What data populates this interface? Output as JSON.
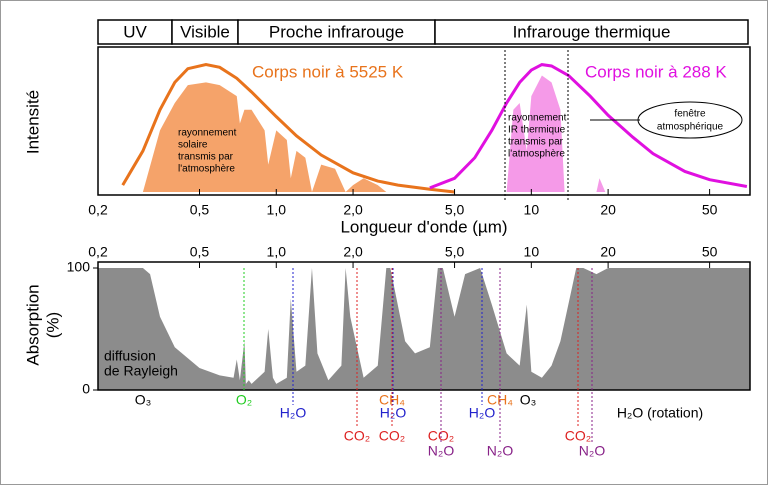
{
  "chart_data": [
    {
      "type": "line",
      "bands": [
        "UV",
        "Visible",
        "Proche infrarouge",
        "Infrarouge thermique"
      ],
      "x_label": "Longueur d'onde (µm)",
      "y_label": "Intensité",
      "xscale": "log",
      "xlim": [
        0.2,
        72
      ],
      "ylim": [
        0,
        1
      ],
      "xticks": [
        {
          "value": 0.2,
          "label": "0,2"
        },
        {
          "value": 0.5,
          "label": "0,5"
        },
        {
          "value": 1,
          "label": "1,0"
        },
        {
          "value": 2,
          "label": "2,0"
        },
        {
          "value": 5,
          "label": "5,0"
        },
        10,
        20,
        50
      ],
      "series": [
        {
          "name": "Corps noir à 5525 K",
          "color": "#e8731c",
          "x": [
            0.25,
            0.3,
            0.35,
            0.4,
            0.45,
            0.53,
            0.6,
            0.7,
            0.8,
            1.0,
            1.2,
            1.5,
            2.0,
            2.5,
            3,
            4,
            5
          ],
          "values": [
            0.05,
            0.3,
            0.6,
            0.8,
            0.9,
            0.93,
            0.91,
            0.83,
            0.73,
            0.55,
            0.41,
            0.27,
            0.14,
            0.08,
            0.05,
            0.02,
            0
          ]
        },
        {
          "name": "Corps noir à 288 K",
          "color": "#e010e0",
          "x": [
            4,
            5,
            6,
            7,
            8,
            9,
            10,
            11,
            12,
            14,
            17,
            20,
            25,
            30,
            40,
            50,
            70
          ],
          "values": [
            0.03,
            0.1,
            0.25,
            0.45,
            0.65,
            0.8,
            0.89,
            0.93,
            0.92,
            0.85,
            0.7,
            0.56,
            0.4,
            0.28,
            0.15,
            0.09,
            0.04
          ]
        }
      ],
      "transmitted": [
        {
          "color": "#f5a36a",
          "x": [
            0.3,
            0.35,
            0.4,
            0.45,
            0.53,
            0.6,
            0.7,
            0.72,
            0.75,
            0.8,
            0.9,
            0.93,
            1.0,
            1.1,
            1.14,
            1.2,
            1.3,
            1.38,
            1.5,
            1.7,
            1.87,
            2.0,
            2.2,
            2.5,
            2.7
          ],
          "values": [
            0,
            0.45,
            0.65,
            0.78,
            0.8,
            0.78,
            0.7,
            0.5,
            0.6,
            0.6,
            0.45,
            0.2,
            0.45,
            0.38,
            0.1,
            0.3,
            0.25,
            0,
            0.2,
            0.17,
            0,
            0.05,
            0.1,
            0.05,
            0
          ]
        },
        {
          "color": "#f59ae8",
          "x": [
            8,
            8.5,
            9,
            9.6,
            10,
            11,
            12,
            13,
            13.5,
            18,
            18.5,
            19,
            19.5
          ],
          "values": [
            0,
            0.6,
            0.65,
            0.3,
            0.7,
            0.85,
            0.8,
            0.6,
            0,
            0,
            0.1,
            0.05,
            0
          ]
        }
      ],
      "annotations": [
        [
          "rayonnement",
          "solaire",
          "transmis par",
          "l'atmosphère"
        ],
        [
          "rayonnement",
          "IR thermique",
          "transmis par",
          "l'atmosphère"
        ],
        [
          "fenêtre",
          "atmosphérique"
        ]
      ]
    },
    {
      "type": "area",
      "y_label": [
        "Absorption",
        "(%)"
      ],
      "xscale": "log",
      "xlim": [
        0.2,
        72
      ],
      "ylim": [
        0,
        100
      ],
      "yticks": [
        0,
        100
      ],
      "xticks": [
        {
          "value": 0.2,
          "label": "0,2"
        },
        {
          "value": 0.5,
          "label": "0,5"
        },
        {
          "value": 1,
          "label": "1,0"
        },
        {
          "value": 2,
          "label": "2,0"
        },
        {
          "value": 5,
          "label": "5,0"
        },
        10,
        20,
        50
      ],
      "color": "#8c8c8c",
      "x": [
        0.2,
        0.3,
        0.32,
        0.35,
        0.4,
        0.5,
        0.6,
        0.68,
        0.7,
        0.72,
        0.75,
        0.76,
        0.78,
        0.8,
        0.9,
        0.93,
        0.97,
        1.0,
        1.1,
        1.14,
        1.2,
        1.3,
        1.38,
        1.45,
        1.6,
        1.8,
        1.87,
        1.95,
        2.2,
        2.5,
        2.7,
        2.8,
        3.2,
        3.5,
        4.0,
        4.3,
        4.5,
        5.0,
        5.5,
        6.3,
        7.0,
        8.0,
        9.0,
        9.6,
        10,
        11,
        12,
        13,
        15,
        16,
        18,
        20,
        30,
        72
      ],
      "values": [
        100,
        100,
        95,
        60,
        35,
        18,
        12,
        10,
        25,
        8,
        40,
        5,
        8,
        5,
        15,
        50,
        10,
        5,
        10,
        75,
        15,
        20,
        100,
        30,
        8,
        20,
        100,
        60,
        10,
        20,
        100,
        100,
        40,
        30,
        35,
        100,
        100,
        60,
        95,
        100,
        70,
        30,
        20,
        70,
        15,
        10,
        20,
        40,
        100,
        100,
        95,
        100,
        100,
        100
      ],
      "annotation": [
        "diffusion",
        "de Rayleigh"
      ],
      "molecules": [
        {
          "label": "O₃",
          "color": "#000000"
        },
        {
          "label": "O₂",
          "color": "#22cc22"
        },
        {
          "label": "CH₄",
          "color": "#e8731c"
        },
        {
          "label": "CH₄",
          "color": "#e8731c"
        },
        {
          "label": "O₃",
          "color": "#000000"
        },
        {
          "label": "H₂O",
          "color": "#2222cc"
        },
        {
          "label": "H₂O",
          "color": "#2222cc"
        },
        {
          "label": "H₂O",
          "color": "#2222cc"
        },
        {
          "label": "H₂O (rotation)",
          "color": "#000000"
        },
        {
          "label": "CO₂",
          "color": "#dd2222"
        },
        {
          "label": "CO₂",
          "color": "#dd2222"
        },
        {
          "label": "CO₂",
          "color": "#dd2222"
        },
        {
          "label": "CO₂",
          "color": "#dd2222"
        },
        {
          "label": "N₂O",
          "color": "#882288"
        },
        {
          "label": "N₂O",
          "color": "#882288"
        },
        {
          "label": "N₂O",
          "color": "#882288"
        }
      ]
    }
  ]
}
